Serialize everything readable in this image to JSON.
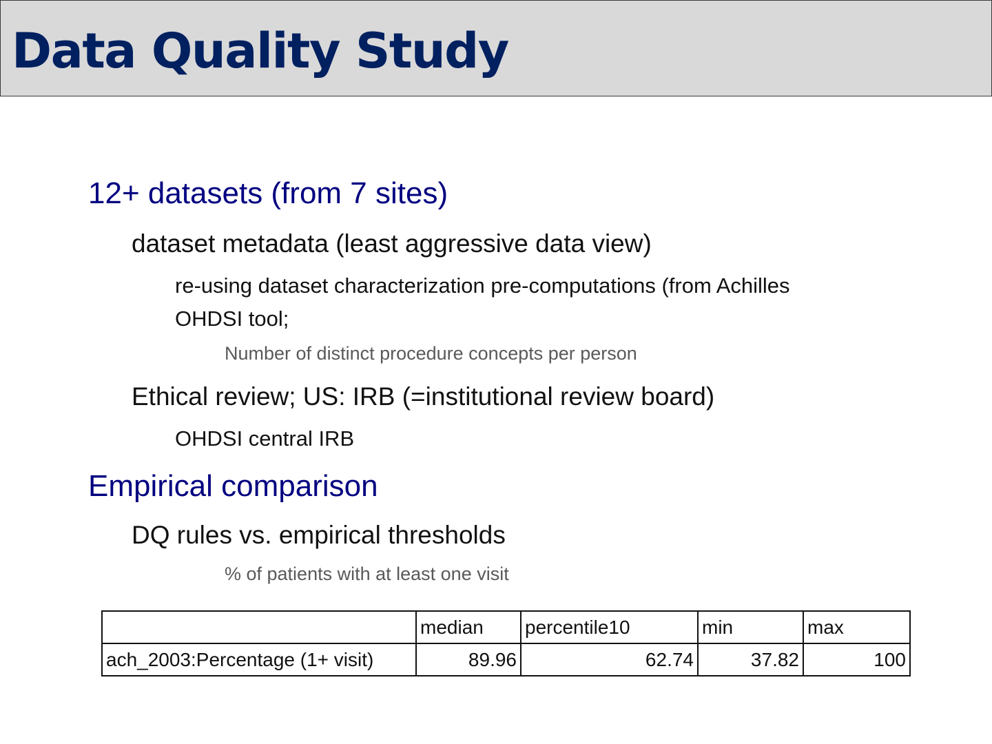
{
  "slide": {
    "title": "Data Quality Study",
    "bullets": {
      "b1": "12+ datasets (from 7 sites)",
      "b1_1": "dataset metadata (least aggressive data view)",
      "b1_1_1_line1": "re-using dataset characterization pre-computations (from Achilles",
      "b1_1_1_line2": "OHDSI tool;",
      "b1_1_1_1": "Number of distinct procedure concepts per person",
      "b1_2": "Ethical review;  US: IRB (=institutional review board)",
      "b1_2_1": "OHDSI central IRB",
      "b2": "Empirical comparison",
      "b2_1": "DQ rules vs. empirical thresholds",
      "b2_1_1": "% of patients with at least one visit"
    },
    "colors": {
      "title": "#002060",
      "level1": "#000080",
      "title_bar_bg": "#d9d9d9"
    }
  },
  "table": {
    "headers": [
      "",
      "median",
      "percentile10",
      "min",
      "max"
    ],
    "rows": [
      [
        "ach_2003:Percentage (1+ visit)",
        "89.96",
        "62.74",
        "37.82",
        "100"
      ]
    ]
  }
}
